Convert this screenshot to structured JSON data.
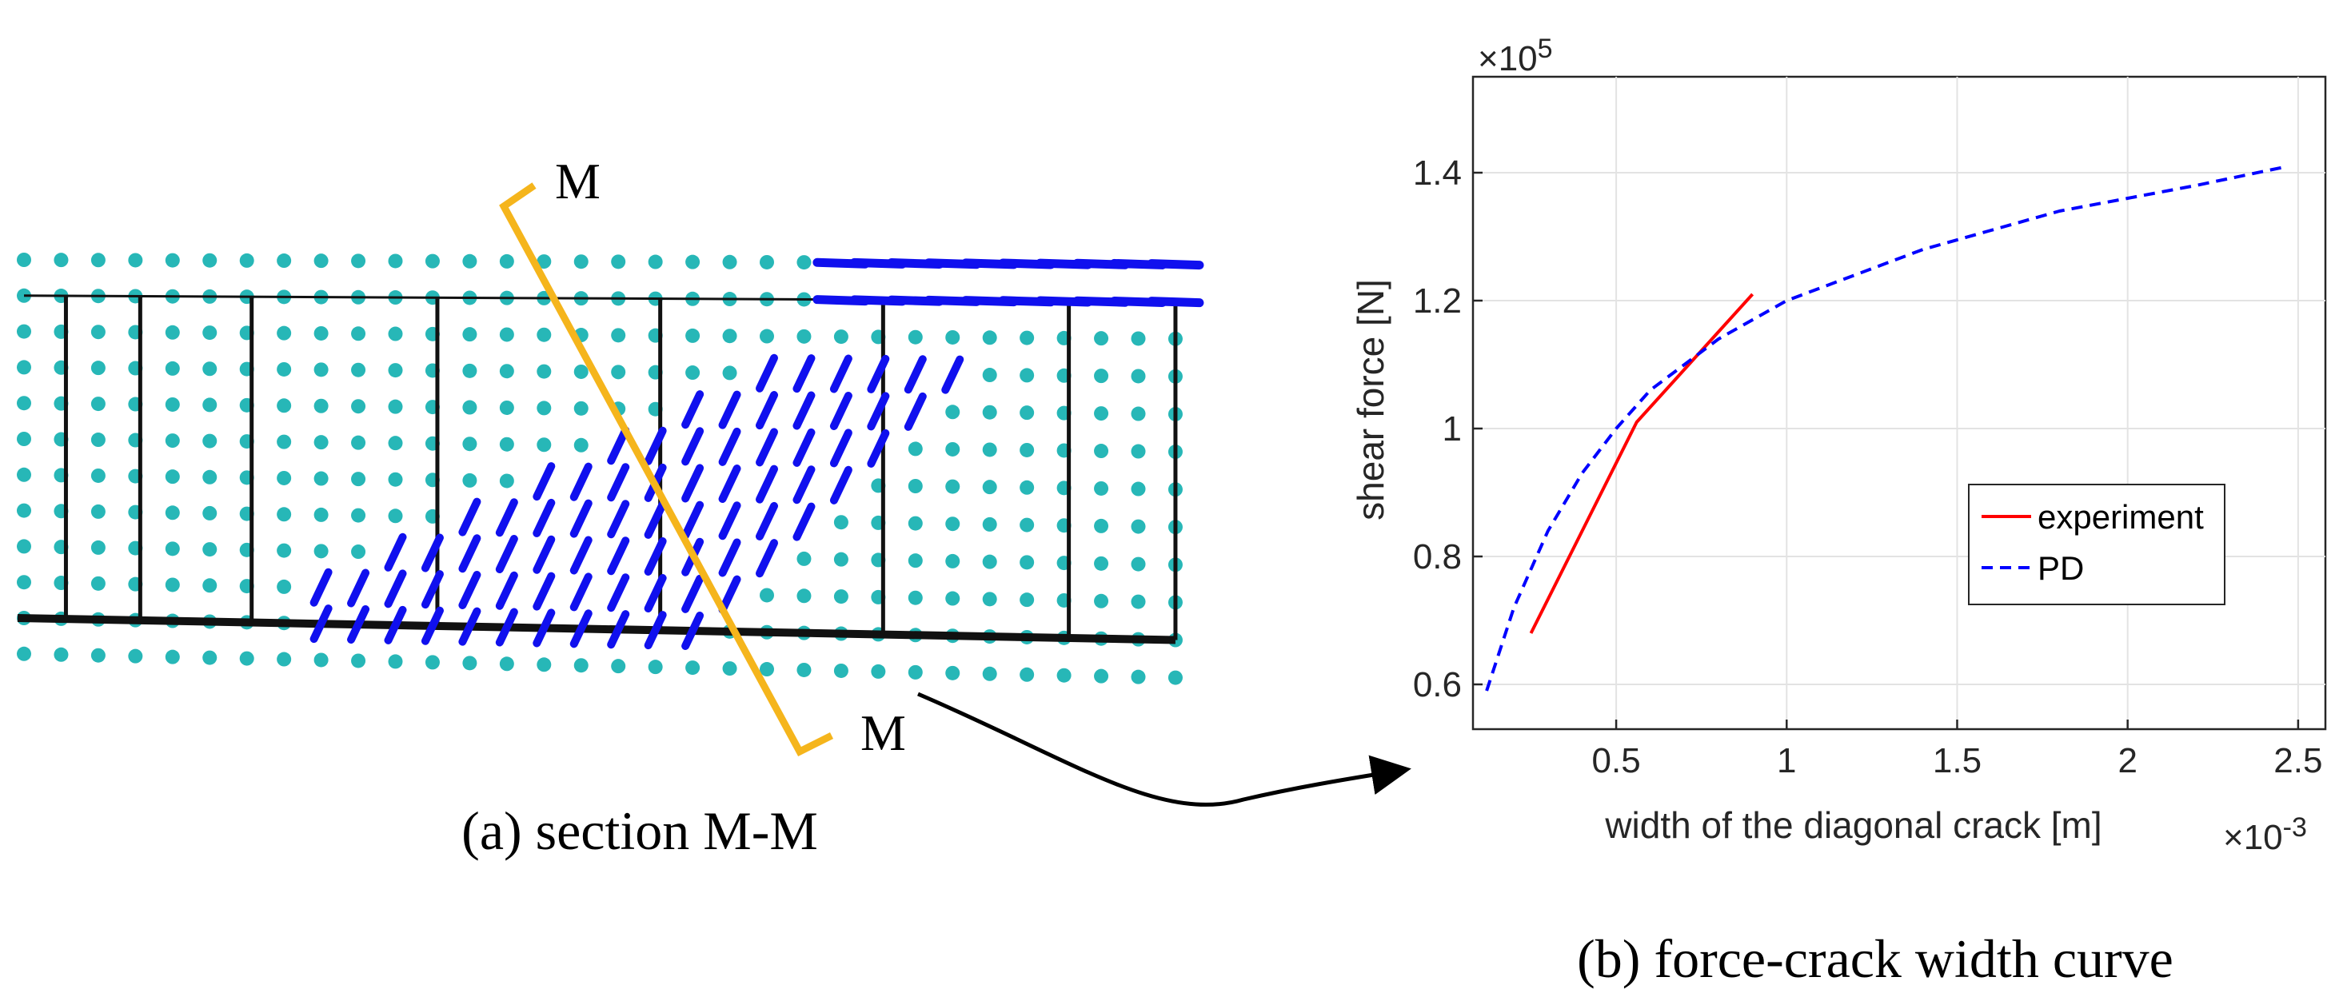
{
  "left_panel": {
    "section_label_top": "M",
    "section_label_bottom": "M",
    "caption": "(a) section M-M",
    "colors": {
      "particle": "#27b7b7",
      "crack": "#1010ee",
      "section_line": "#f5b51c",
      "frame": "#111111"
    }
  },
  "right_panel": {
    "caption": "(b)  force-crack width curve"
  },
  "chart_data": {
    "type": "line",
    "title": "",
    "xlabel": "width of the diagonal crack [m]",
    "ylabel": "shear force [N]",
    "x_multiplier_label": "×10",
    "x_multiplier_exponent": "-3",
    "y_multiplier_label": "×10",
    "y_multiplier_exponent": "5",
    "xlim": [
      0.08,
      2.58
    ],
    "ylim": [
      0.53,
      1.55
    ],
    "x_ticks": [
      0.5,
      1,
      1.5,
      2,
      2.5
    ],
    "x_tick_labels": [
      "0.5",
      "1",
      "1.5",
      "2",
      "2.5"
    ],
    "y_ticks": [
      0.6,
      0.8,
      1.0,
      1.2,
      1.4
    ],
    "y_tick_labels": [
      "0.6",
      "0.8",
      "1",
      "1.2",
      "1.4"
    ],
    "grid": true,
    "legend_position": "center-right",
    "series": [
      {
        "name": "experiment",
        "color": "#ff0000",
        "style": "solid",
        "x": [
          0.25,
          0.56,
          0.9
        ],
        "y": [
          0.68,
          1.01,
          1.21
        ]
      },
      {
        "name": "PD",
        "color": "#0000ff",
        "style": "dashed",
        "x": [
          0.12,
          0.2,
          0.3,
          0.4,
          0.5,
          0.6,
          0.7,
          0.8,
          0.9,
          1.0,
          1.2,
          1.4,
          1.6,
          1.8,
          2.0,
          2.2,
          2.47
        ],
        "y": [
          0.59,
          0.72,
          0.84,
          0.93,
          1.0,
          1.06,
          1.1,
          1.14,
          1.17,
          1.2,
          1.24,
          1.28,
          1.31,
          1.34,
          1.36,
          1.38,
          1.41
        ]
      }
    ]
  }
}
